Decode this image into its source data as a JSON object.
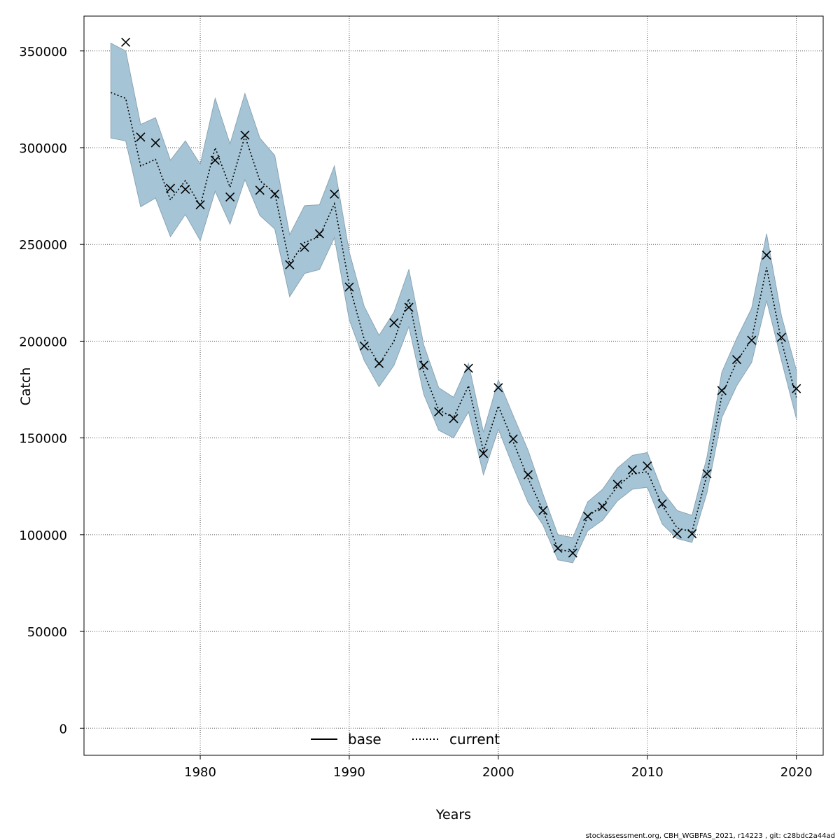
{
  "chart_data": {
    "type": "line",
    "xlabel": "Years",
    "ylabel": "Catch",
    "xlim": [
      1972.2,
      2021.8
    ],
    "ylim": [
      -14000,
      368000
    ],
    "x_ticks": [
      1980,
      1990,
      2000,
      2010,
      2020
    ],
    "x_tick_labels": [
      "1980",
      "1990",
      "2000",
      "2010",
      "2020"
    ],
    "y_ticks": [
      0,
      50000,
      100000,
      150000,
      200000,
      250000,
      300000,
      350000
    ],
    "y_tick_labels": [
      "0",
      "50000",
      "100000",
      "150000",
      "200000",
      "250000",
      "300000",
      "350000"
    ],
    "grid": true,
    "legend_position": "bottom-center",
    "legend": [
      {
        "label": "base",
        "style": "solid",
        "color": "#000000"
      },
      {
        "label": "current",
        "style": "dotted",
        "color": "#000000"
      }
    ],
    "colors": {
      "band": "#a5c5d6",
      "band_edge": "#8aa4b3",
      "line": "#000000",
      "grid": "#555555"
    },
    "x": [
      1974,
      1975,
      1976,
      1977,
      1978,
      1979,
      1980,
      1981,
      1982,
      1983,
      1984,
      1985,
      1986,
      1987,
      1988,
      1989,
      1990,
      1991,
      1992,
      1993,
      1994,
      1995,
      1996,
      1997,
      1998,
      1999,
      2000,
      2001,
      2002,
      2003,
      2004,
      2005,
      2006,
      2007,
      2008,
      2009,
      2010,
      2011,
      2012,
      2013,
      2014,
      2015,
      2016,
      2017,
      2018,
      2019,
      2020
    ],
    "series": [
      {
        "name": "current",
        "style": "dotted",
        "values": [
          328500,
          325500,
          290500,
          294000,
          273000,
          283000,
          270000,
          300000,
          279500,
          306000,
          283000,
          276500,
          240000,
          251000,
          254000,
          271000,
          229000,
          201000,
          188000,
          200000,
          222000,
          184000,
          164500,
          160500,
          177000,
          143000,
          166500,
          148000,
          129000,
          112500,
          92500,
          91000,
          109500,
          115000,
          125000,
          131500,
          132500,
          115000,
          103500,
          101500,
          131000,
          172000,
          189500,
          201000,
          238000,
          200000,
          171000
        ],
        "lower": [
          305000,
          303500,
          269500,
          274000,
          254000,
          265500,
          252000,
          277500,
          260500,
          283500,
          265000,
          258000,
          223000,
          235000,
          237000,
          253500,
          211000,
          190000,
          176500,
          187500,
          207500,
          172500,
          154000,
          150000,
          163500,
          131000,
          154500,
          135000,
          116500,
          105000,
          87000,
          85500,
          102000,
          107500,
          117500,
          123500,
          124500,
          105500,
          98000,
          96000,
          121500,
          160500,
          177000,
          189000,
          221000,
          190000,
          160000
        ],
        "upper": [
          354000,
          350000,
          312000,
          315500,
          293500,
          303500,
          291500,
          325500,
          302000,
          328000,
          305000,
          296000,
          255000,
          270000,
          270500,
          290500,
          246000,
          218000,
          203000,
          215000,
          237000,
          198000,
          176000,
          171000,
          188500,
          153000,
          180000,
          161500,
          143500,
          121000,
          100000,
          98500,
          117000,
          123500,
          134500,
          141000,
          142500,
          122500,
          112500,
          110000,
          140000,
          184000,
          201500,
          217000,
          255500,
          213000,
          185000
        ],
        "points": [
          null,
          354500,
          305500,
          302500,
          279000,
          278500,
          270500,
          293500,
          274500,
          306500,
          278000,
          276000,
          239500,
          248500,
          255500,
          276000,
          228000,
          197500,
          188500,
          209500,
          217500,
          187500,
          163500,
          160000,
          186000,
          142000,
          176000,
          149500,
          131000,
          112500,
          93000,
          90500,
          109500,
          114500,
          126000,
          133500,
          135500,
          116000,
          100500,
          100500,
          131500,
          174500,
          190500,
          200500,
          244500,
          202000,
          175500
        ]
      }
    ]
  },
  "footer": "stockassessment.org, CBH_WGBFAS_2021, r14223 , git: c28bdc2a44ad"
}
